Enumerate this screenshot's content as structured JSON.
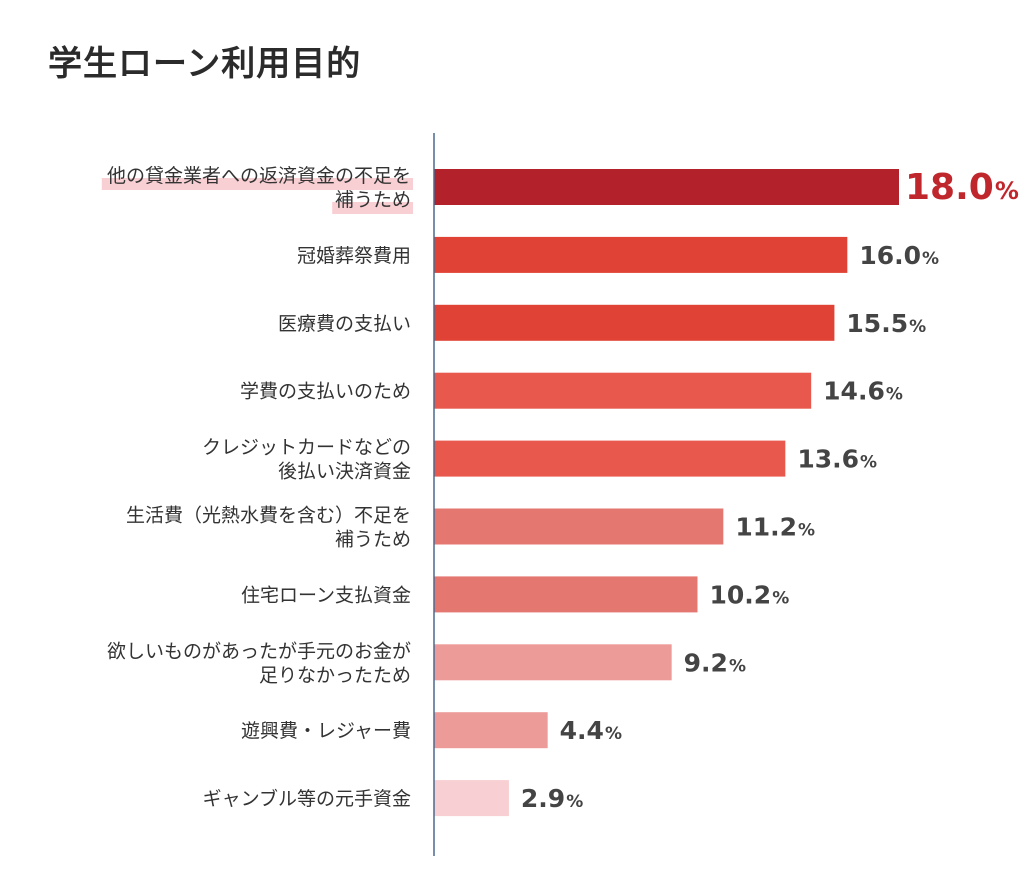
{
  "chart_data": {
    "type": "bar",
    "orientation": "horizontal",
    "title": "学生ローン利用目的",
    "unit": "%",
    "xlim": [
      0,
      18
    ],
    "grid": false,
    "highlight_index": 0,
    "categories": [
      [
        "他の貸金業者への返済資金の不足を",
        "補うため"
      ],
      [
        "冠婚葬祭費用"
      ],
      [
        "医療費の支払い"
      ],
      [
        "学費の支払いのため"
      ],
      [
        "クレジットカードなどの",
        "後払い決済資金"
      ],
      [
        "生活費（光熱水費を含む）不足を",
        "補うため"
      ],
      [
        "住宅ローン支払資金"
      ],
      [
        "欲しいものがあったが手元のお金が",
        "足りなかったため"
      ],
      [
        "遊興費・レジャー費"
      ],
      [
        "ギャンブル等の元手資金"
      ]
    ],
    "values": [
      18.0,
      16.0,
      15.5,
      14.6,
      13.6,
      11.2,
      10.2,
      9.2,
      4.4,
      2.9
    ],
    "value_labels": [
      "18.0",
      "16.0",
      "15.5",
      "14.6",
      "13.6",
      "11.2",
      "10.2",
      "9.2",
      "4.4",
      "2.9"
    ],
    "colors": [
      "#b3222a",
      "#e04335",
      "#e04335",
      "#e8584c",
      "#e8584c",
      "#e57771",
      "#e57771",
      "#ed9b98",
      "#ed9b98",
      "#f8cfd3"
    ],
    "highlight_value_color": "#c0272d",
    "default_value_color": "#444444",
    "label_highlight_color": "#f8cfd3",
    "axis_color": "#4b6a8f"
  }
}
